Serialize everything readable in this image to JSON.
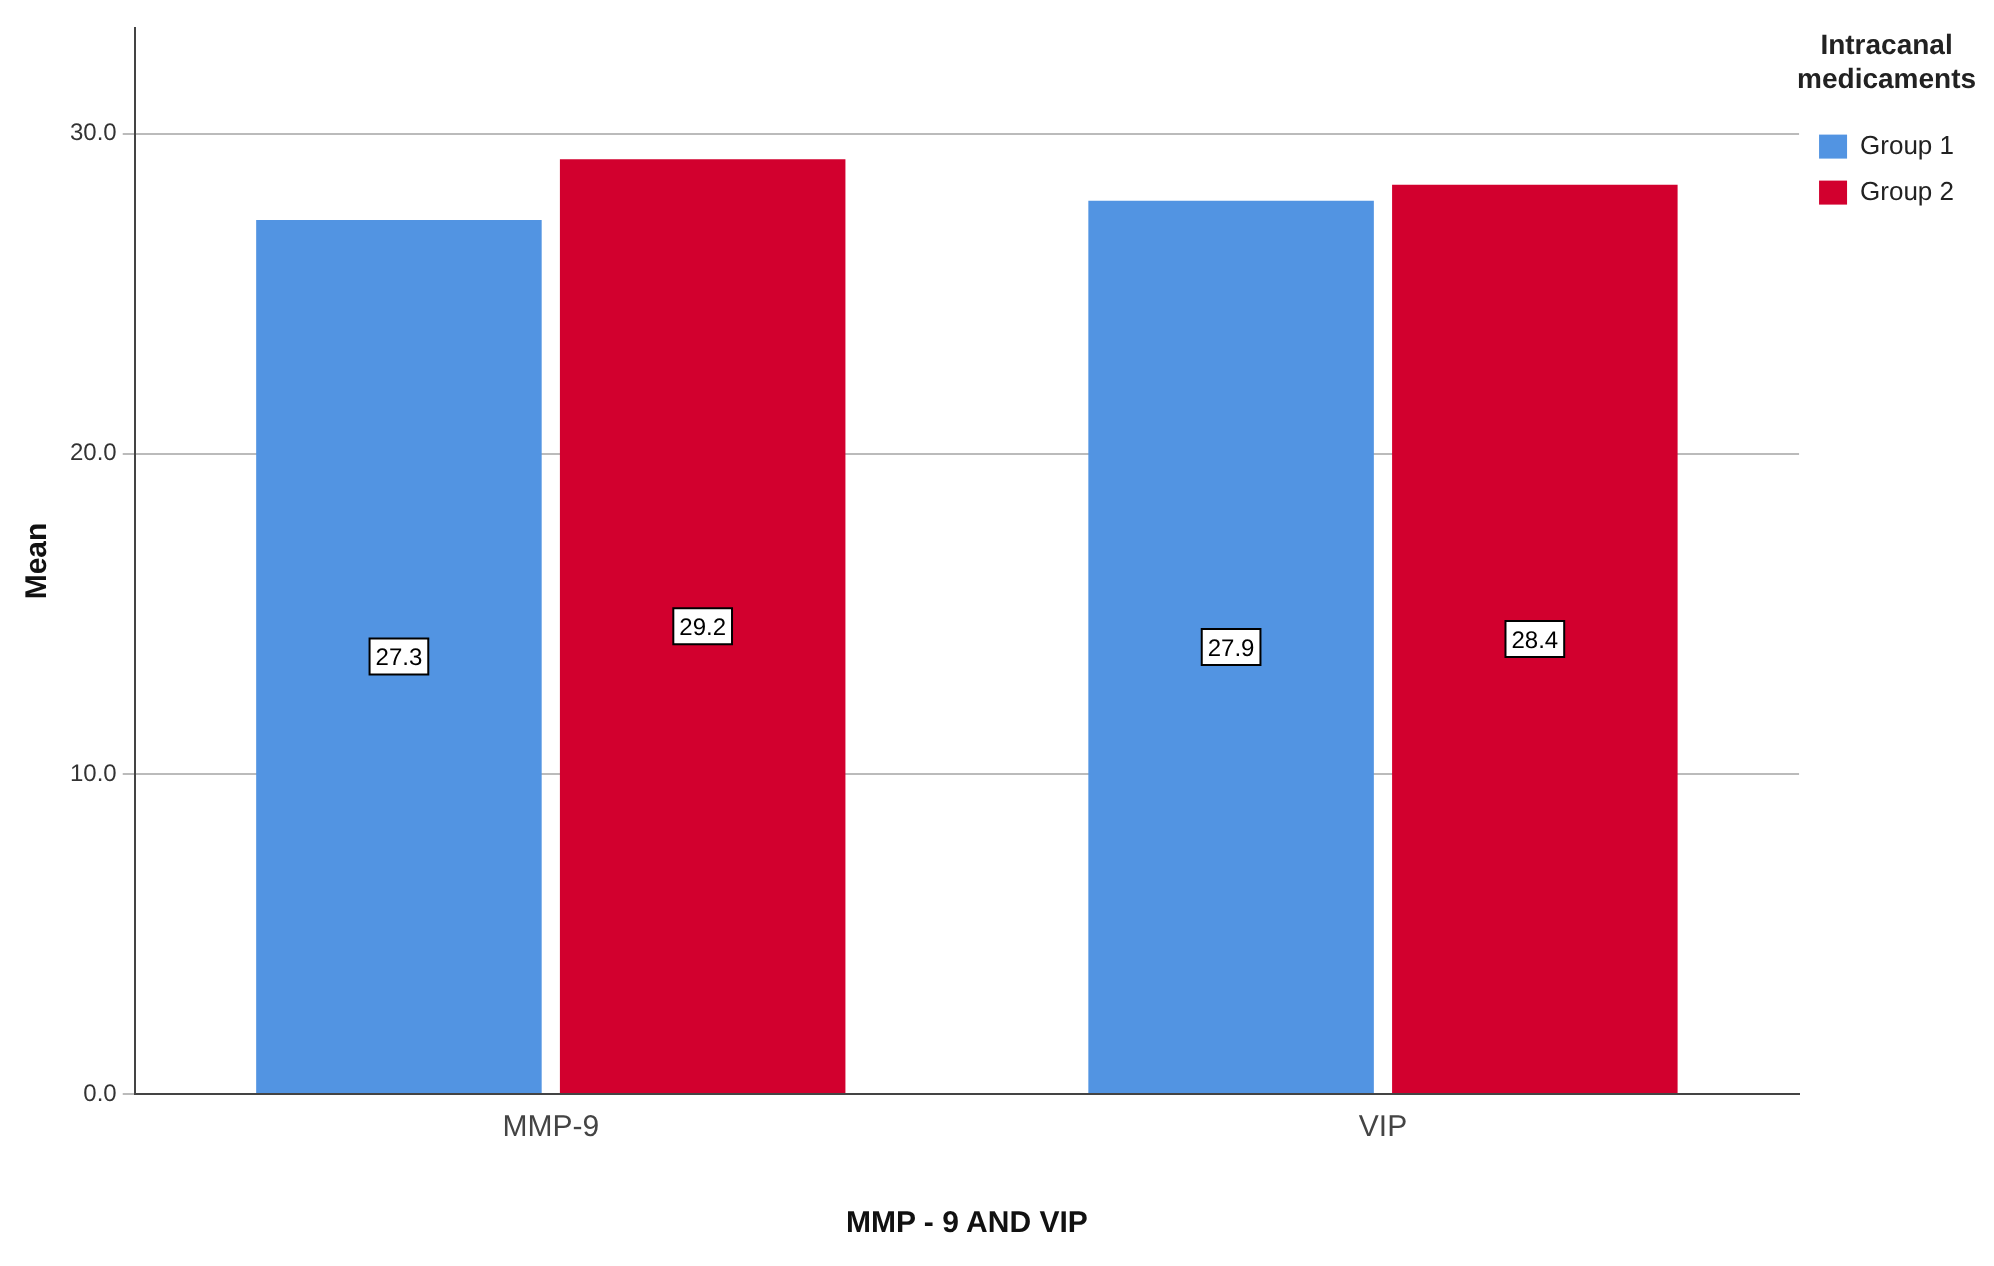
{
  "chart_data": {
    "type": "bar",
    "xlabel": "MMP - 9 AND VIP",
    "ylabel": "Mean",
    "legend_title": "Intracanal medicaments",
    "categories": [
      "MMP-9",
      "VIP"
    ],
    "series": [
      {
        "name": "Group 1",
        "color": "#5294e2",
        "values": [
          27.3,
          27.9
        ]
      },
      {
        "name": "Group 2",
        "color": "#d2002e",
        "values": [
          29.2,
          28.4
        ]
      }
    ],
    "ylim": [
      0,
      33.3
    ],
    "yticks": [
      {
        "value": 0,
        "label": "0.0"
      },
      {
        "value": 10,
        "label": "10.0"
      },
      {
        "value": 20,
        "label": "20.0"
      },
      {
        "value": 30,
        "label": "30.0"
      }
    ],
    "grid": "y",
    "legend": "top right",
    "data_labels": true
  }
}
